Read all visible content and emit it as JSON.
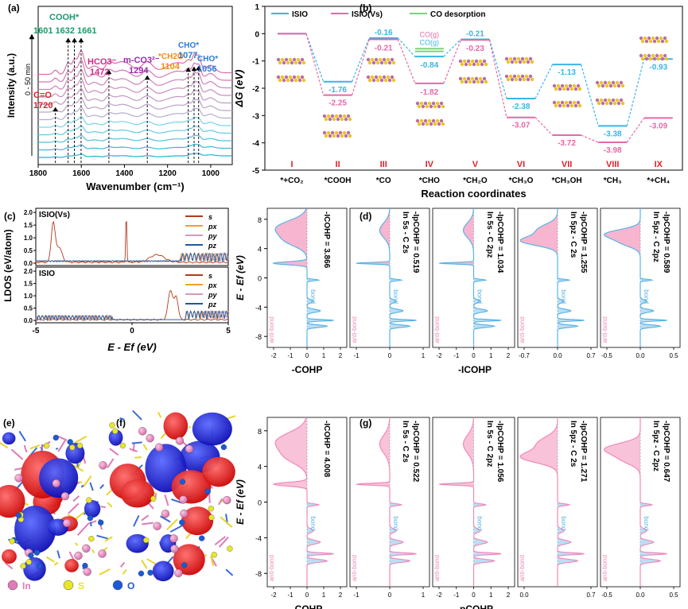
{
  "figure": {
    "panel_labels": [
      "(a)",
      "(b)",
      "(c)",
      "(d)",
      "(e)",
      "(f)",
      "(g)"
    ],
    "legend_atoms": [
      {
        "symbol": "In",
        "color": "#e07ab8"
      },
      {
        "symbol": "S",
        "color": "#e8e62a"
      },
      {
        "symbol": "O",
        "color": "#1a5ad8"
      }
    ]
  },
  "chart_data": [
    {
      "id": "a",
      "type": "line",
      "title": "",
      "xlabel": "Wavenumber (cm⁻¹)",
      "ylabel": "Intensity (a.u.)",
      "xlim": [
        1800,
        900
      ],
      "xticks": [
        1800,
        1600,
        1400,
        1200,
        1000
      ],
      "time_label": "0 - 50 min",
      "num_traces": 12,
      "peaks": [
        {
          "label": "C=O",
          "value": "1720",
          "color": "#d6262a"
        },
        {
          "label": "COOH*",
          "value": "1601 1632 1661",
          "color": "#1a9b6b"
        },
        {
          "label": "HCO3⁻",
          "value": "1472",
          "color": "#d6268a"
        },
        {
          "label": "m-CO3²⁻",
          "value": "1294",
          "color": "#9b2ab0"
        },
        {
          "label": "*CH2O",
          "value": "1104",
          "color": "#f08a1c"
        },
        {
          "label": "CHO*",
          "value": "1077",
          "color": "#2a7ad6"
        },
        {
          "label": "CHO*",
          "value": "1056",
          "color": "#2a7ad6"
        }
      ]
    },
    {
      "id": "b",
      "type": "line",
      "xlabel": "Reaction coordinates",
      "ylabel": "ΔG (eV)",
      "ylim": [
        -5,
        1
      ],
      "yticks": [
        1,
        0,
        -1,
        -2,
        -3,
        -4,
        -5
      ],
      "legend": [
        "ISIO",
        "ISIO(Vs)",
        "CO desorption"
      ],
      "colors": {
        "ISIO": "#3ab4e6",
        "ISIO_Vs": "#e668a8",
        "CO_desorption": "#7fd07f"
      },
      "steps": [
        "I",
        "II",
        "III",
        "IV",
        "V",
        "VI",
        "VII",
        "VIII",
        "IX"
      ],
      "species": [
        "*+CO₂",
        "*COOH",
        "*CO",
        "*CHO",
        "*CH₂O",
        "*CH₃O",
        "*CH₃OH",
        "*CH₃",
        "*+CH₄"
      ],
      "series": [
        {
          "name": "ISIO",
          "values": [
            0,
            -1.76,
            -0.16,
            -0.84,
            -0.21,
            -2.38,
            -1.13,
            -3.38,
            -0.93
          ]
        },
        {
          "name": "ISIO(Vs)",
          "values": [
            0,
            -2.25,
            -0.21,
            -1.82,
            -0.23,
            -3.07,
            -3.72,
            -3.98,
            -3.09
          ]
        }
      ],
      "co_gas_labels": [
        "CO(g)",
        "CO(g)"
      ]
    },
    {
      "id": "c",
      "type": "line",
      "xlabel": "E - Ef (eV)",
      "ylabel": "LDOS (eV/atom)",
      "xlim": [
        -5,
        5
      ],
      "xticks": [
        -5,
        0,
        5
      ],
      "subpanels": [
        {
          "name": "ISIO(Vs)",
          "yticks": [
            "2.0",
            "1.5",
            "1.0",
            "0.5",
            "0.0"
          ]
        },
        {
          "name": "ISIO",
          "yticks": [
            "2.0",
            "1.5",
            "1.0",
            "0.5",
            "0.0"
          ]
        }
      ],
      "legend": [
        {
          "name": "s",
          "color": "#b23a1c"
        },
        {
          "name": "px",
          "color": "#f0a030"
        },
        {
          "name": "py",
          "color": "#d49abc"
        },
        {
          "name": "pz",
          "color": "#1a5aa0"
        }
      ]
    },
    {
      "id": "d",
      "type": "area",
      "ylabel": "E - Ef (eV)",
      "yticks": [
        8,
        4,
        0,
        -4,
        -8
      ],
      "bottom_labels": [
        "-COHP",
        "-ICOHP"
      ],
      "bond_label": "bond",
      "antibond_label": "anti-bond",
      "subplots": [
        {
          "title": "-ICOHP = 3.866",
          "xticks": [
            "-2",
            "-1",
            "0",
            "1",
            "2"
          ]
        },
        {
          "title": "-IpCOHP = 0.519",
          "subtitle": "In 5s - C 2s",
          "xticks": [
            "-1",
            "0",
            "1"
          ]
        },
        {
          "title": "-IpCOHP = 1.034",
          "subtitle": "In 5s - C 2pz",
          "xticks": [
            "-2",
            "-1",
            "0",
            "1",
            "2"
          ]
        },
        {
          "title": "-IpCOHP = 1.255",
          "subtitle": "In 5pz - C 2s",
          "xticks": [
            "-0.7",
            "0.0",
            "0.7"
          ]
        },
        {
          "title": "-IpCOHP = 0.589",
          "subtitle": "In 5pz - C 2pz",
          "xticks": [
            "-0.5",
            "0.0",
            "0.5"
          ]
        }
      ]
    },
    {
      "id": "g",
      "type": "area",
      "ylabel": "E - Ef (eV)",
      "yticks": [
        8,
        4,
        0,
        -4,
        -8
      ],
      "bottom_labels": [
        "-COHP",
        "-pCOHP"
      ],
      "bond_label": "bond",
      "antibond_label": "anti-bond",
      "subplots": [
        {
          "title": "-ICOHP = 4.008",
          "xticks": [
            "-2",
            "-1",
            "0",
            "1",
            "2"
          ]
        },
        {
          "title": "-IpCOHP = 0.522",
          "subtitle": "In 5s - C 2s",
          "xticks": [
            "-1",
            "0",
            "1"
          ]
        },
        {
          "title": "-IpCOHP = 1.056",
          "subtitle": "In 5s - C 2pz",
          "xticks": [
            "-2",
            "-1",
            "0",
            "1",
            "2"
          ]
        },
        {
          "title": "-IpCOHP = 1.271",
          "subtitle": "In 5pz - C 2s",
          "xticks": [
            "0.0",
            "0.7"
          ]
        },
        {
          "title": "-IpCOHP = 0.647",
          "subtitle": "In 5pz - C 2pz",
          "xticks": [
            "-0.5",
            "0.0",
            "0.5"
          ]
        }
      ]
    }
  ]
}
